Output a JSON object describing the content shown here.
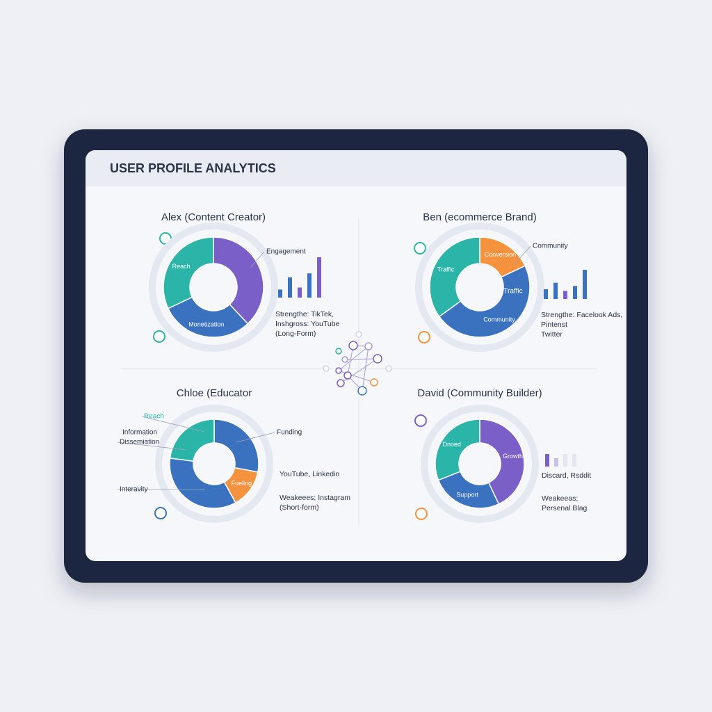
{
  "header": {
    "title": "USER PROFILE ANALYTICS"
  },
  "panels": [
    {
      "name": "Alex (Content Creator)",
      "segments": [
        {
          "value": 38,
          "color": "#7b5fc9"
        },
        {
          "label": "Monetization",
          "value": 30,
          "color": "#3a72bf"
        },
        {
          "label": "Reach",
          "value": 32,
          "color": "#2bb5a8"
        }
      ],
      "callouts": [
        "Engagement"
      ],
      "bars": [
        {
          "value": 2,
          "color": "#3a72bf"
        },
        {
          "value": 5,
          "color": "#3a72bf"
        },
        {
          "value": 2.5,
          "color": "#7b5fc9"
        },
        {
          "value": 6,
          "color": "#3a72bf"
        },
        {
          "value": 10,
          "color": "#7b5fc9"
        }
      ],
      "notes": [
        "Strengthe: TikTek,",
        "Inshgross: YouTube",
        "(Long-Form)"
      ]
    },
    {
      "name": "Ben (ecommerce Brand)",
      "segments": [
        {
          "label": "Conversion",
          "value": 18,
          "color": "#f5923e"
        },
        {
          "label": "Community",
          "value": 47,
          "color": "#3a72bf"
        },
        {
          "label": "Traffic",
          "value": 35,
          "color": "#2bb5a8"
        }
      ],
      "callouts": [
        "Community",
        "Traffic"
      ],
      "bars": [
        {
          "value": 3,
          "color": "#3a72bf"
        },
        {
          "value": 5,
          "color": "#3a72bf"
        },
        {
          "value": 2.5,
          "color": "#7b5fc9"
        },
        {
          "value": 4,
          "color": "#3a72bf"
        },
        {
          "value": 9,
          "color": "#3a72bf"
        }
      ],
      "notes": [
        "Strengthe: Facelook Ads,",
        "Pintenst",
        "Twitter"
      ]
    },
    {
      "name": "Chloe (Educator",
      "segments": [
        {
          "value": 28,
          "color": "#3a72bf"
        },
        {
          "label": "Fueling",
          "value": 14,
          "color": "#f5923e"
        },
        {
          "value": 35,
          "color": "#3a72bf"
        },
        {
          "value": 23,
          "color": "#2bb5a8"
        }
      ],
      "callouts": [
        "Reach",
        "Information",
        "Dissemiation",
        "Funding",
        "Interavity"
      ],
      "bars": [],
      "notes": [
        "YouTube, Linkedin",
        "Weakeees; Instagram",
        "(Short-form)"
      ]
    },
    {
      "name": "David (Community Builder)",
      "segments": [
        {
          "label": "Growth",
          "value": 43,
          "color": "#7b5fc9"
        },
        {
          "label": "Support",
          "value": 26,
          "color": "#3a72bf"
        },
        {
          "label": "Dnoed",
          "value": 31,
          "color": "#2bb5a8"
        }
      ],
      "callouts": [],
      "bars": [
        {
          "value": 3,
          "color": "#7b5fc9"
        },
        {
          "value": 2,
          "color": "#c9c2e6"
        },
        {
          "value": 3,
          "color": "#e3e6ee"
        },
        {
          "value": 3,
          "color": "#e3e6ee"
        }
      ],
      "notes": [
        "Discard, Rsddit",
        "Weakeeas;",
        "Persenal Blag"
      ]
    }
  ]
}
